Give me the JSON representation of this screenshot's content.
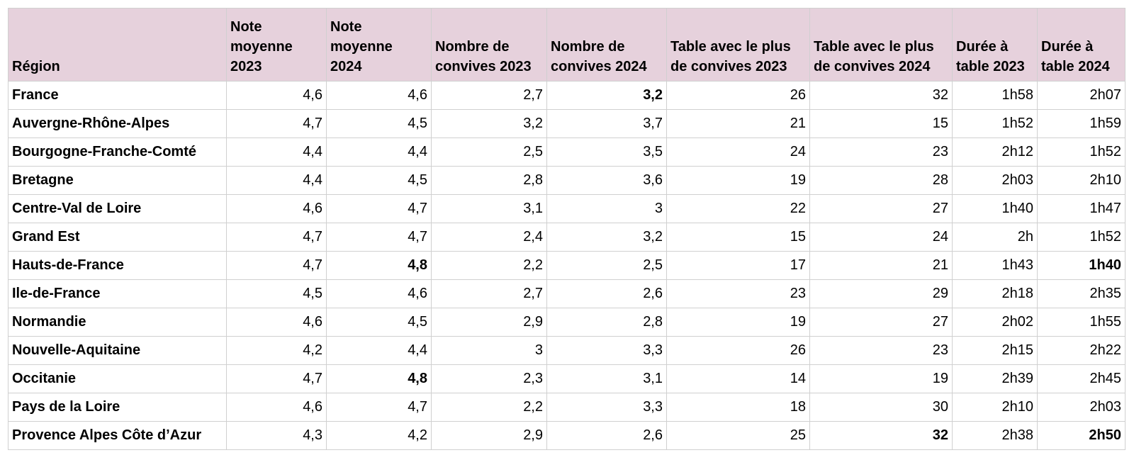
{
  "table": {
    "header": [
      "Région",
      "Note moyenne 2023",
      "Note moyenne 2024",
      "Nombre de convives 2023",
      "Nombre de convives 2024",
      "Table avec le plus de convives 2023",
      "Table avec le plus de convives 2024",
      "Durée à table 2023",
      "Durée à table 2024"
    ],
    "rows": [
      [
        "France",
        "4,6",
        "4,6",
        "2,7",
        {
          "text": "3,2",
          "bold": true
        },
        "26",
        "32",
        "1h58",
        "2h07"
      ],
      [
        "Auvergne-Rhône-Alpes",
        "4,7",
        "4,5",
        "3,2",
        "3,7",
        "21",
        "15",
        "1h52",
        "1h59"
      ],
      [
        "Bourgogne-Franche-Comté",
        "4,4",
        "4,4",
        "2,5",
        "3,5",
        "24",
        "23",
        "2h12",
        "1h52"
      ],
      [
        "Bretagne",
        "4,4",
        "4,5",
        "2,8",
        "3,6",
        "19",
        "28",
        "2h03",
        "2h10"
      ],
      [
        "Centre-Val de Loire",
        "4,6",
        "4,7",
        "3,1",
        "3",
        "22",
        "27",
        "1h40",
        "1h47"
      ],
      [
        "Grand Est",
        "4,7",
        "4,7",
        "2,4",
        "3,2",
        "15",
        "24",
        "2h",
        "1h52"
      ],
      [
        "Hauts-de-France",
        "4,7",
        {
          "text": "4,8",
          "bold": true
        },
        "2,2",
        "2,5",
        "17",
        "21",
        "1h43",
        {
          "text": "1h40",
          "bold": true
        }
      ],
      [
        "Ile-de-France",
        "4,5",
        "4,6",
        "2,7",
        "2,6",
        "23",
        "29",
        "2h18",
        "2h35"
      ],
      [
        "Normandie",
        "4,6",
        "4,5",
        "2,9",
        "2,8",
        "19",
        "27",
        "2h02",
        "1h55"
      ],
      [
        "Nouvelle-Aquitaine",
        "4,2",
        "4,4",
        "3",
        "3,3",
        "26",
        "23",
        "2h15",
        "2h22"
      ],
      [
        "Occitanie",
        "4,7",
        {
          "text": "4,8",
          "bold": true
        },
        "2,3",
        "3,1",
        "14",
        "19",
        "2h39",
        "2h45"
      ],
      [
        "Pays de la Loire",
        "4,6",
        "4,7",
        "2,2",
        "3,3",
        "18",
        "30",
        "2h10",
        "2h03"
      ],
      [
        "Provence Alpes Côte d’Azur",
        "4,3",
        "4,2",
        "2,9",
        "2,6",
        "25",
        {
          "text": "32",
          "bold": true
        },
        "2h38",
        {
          "text": "2h50",
          "bold": true
        }
      ]
    ]
  }
}
